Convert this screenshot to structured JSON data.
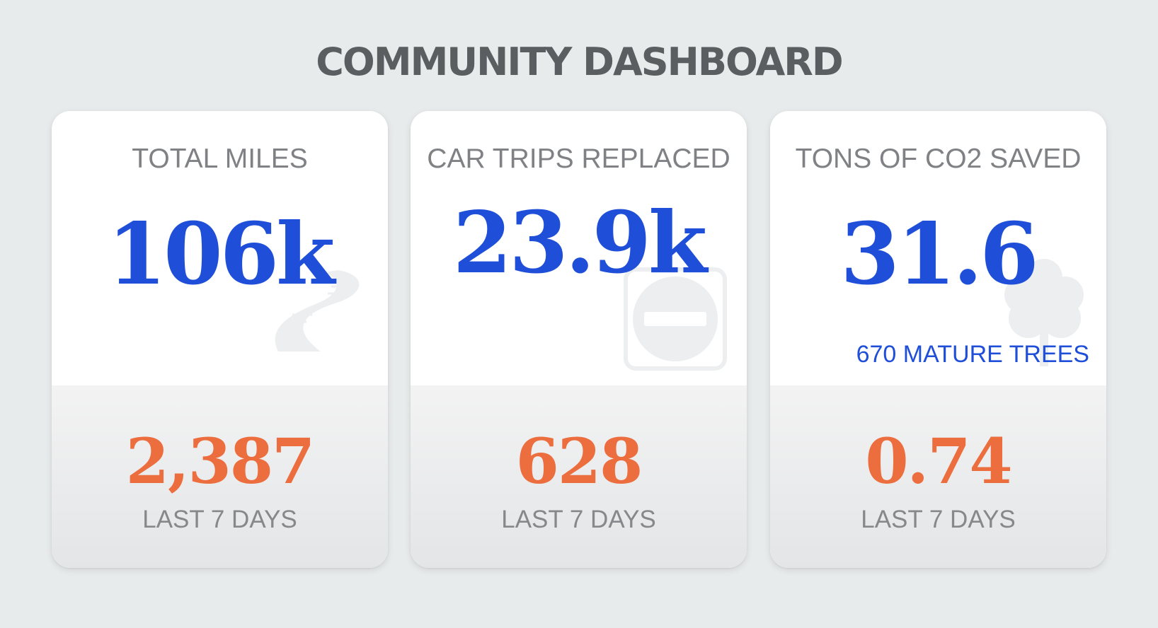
{
  "dashboard": {
    "title": "COMMUNITY DASHBOARD"
  },
  "cards": [
    {
      "label": "TOTAL MILES",
      "value": "106k",
      "week_value": "2,387",
      "week_label": "LAST 7 DAYS",
      "icon": "road-icon"
    },
    {
      "label": "CAR TRIPS REPLACED",
      "value": "23.9k",
      "week_value": "628",
      "week_label": "LAST 7 DAYS",
      "icon": "no-entry-icon"
    },
    {
      "label": "TONS OF CO2 SAVED",
      "value": "31.6",
      "sub_note": "670 MATURE TREES",
      "week_value": "0.74",
      "week_label": "LAST 7 DAYS",
      "icon": "tree-icon"
    }
  ],
  "colors": {
    "background": "#e8ebec",
    "title": "#5a5e61",
    "primary_value": "#1f4fd9",
    "week_value": "#ec6d3d",
    "label": "#7f8184"
  }
}
